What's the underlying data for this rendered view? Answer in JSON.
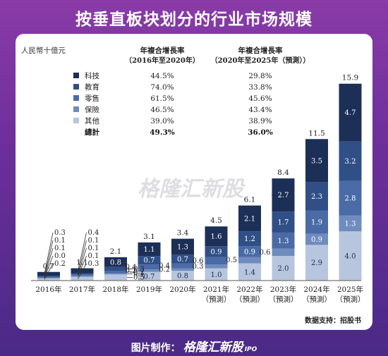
{
  "title": "按垂直板块划分的行业市场规模",
  "source": "数据支持：招股书",
  "footer": {
    "label": "图片制作：",
    "brand": "格隆汇新股",
    "suffix": "IPO"
  },
  "watermark": {
    "brand": "格隆汇新股",
    "suffix": "IPO"
  },
  "colors": {
    "科技": "#1c2f57",
    "教育": "#304f86",
    "零售": "#4a6ba6",
    "保险": "#6f8cbe",
    "其他": "#b7c5de"
  },
  "chart_data": {
    "type": "bar",
    "stacked": true,
    "unit_label": "人民幣十億元",
    "categories": [
      "2016年",
      "2017年",
      "2018年",
      "2019年",
      "2020年",
      "2021年\n（預測）",
      "2022年\n（預測）",
      "2023年\n（預測）",
      "2024年\n（預測）",
      "2025年\n（預測）"
    ],
    "totals": [
      "0.7",
      "1.1",
      "2.1",
      "3.1",
      "3.4",
      "4.5",
      "6.1",
      "8.4",
      "11.5",
      "15.9"
    ],
    "series": [
      {
        "name": "其他",
        "values": [
          0.2,
          0.3,
          0.5,
          0.7,
          0.8,
          1.0,
          1.4,
          2.0,
          2.9,
          4.0
        ],
        "labels": [
          "0.2",
          "0.3",
          "0.5",
          "0.7",
          "0.8",
          "1.0",
          "1.4",
          "2.0",
          "2.9",
          "4.0"
        ]
      },
      {
        "name": "保險",
        "values": [
          0.0,
          0.1,
          0.1,
          0.2,
          0.2,
          0.3,
          0.5,
          0.6,
          0.9,
          1.3
        ],
        "labels": [
          "0.0",
          "0.1",
          "0.1",
          "0.2",
          "0.2",
          "0.3",
          "0.5",
          "0.6",
          "0.9",
          "1.3"
        ]
      },
      {
        "name": "零售",
        "values": [
          0.1,
          0.1,
          0.2,
          0.4,
          0.4,
          0.6,
          0.9,
          1.3,
          1.9,
          2.8
        ],
        "labels": [
          "0.1",
          "0.1",
          "0.2",
          "0.4",
          "0.4",
          "0.6",
          "0.9",
          "1.3",
          "1.9",
          "2.8"
        ]
      },
      {
        "name": "教育",
        "values": [
          0.1,
          0.1,
          0.3,
          0.7,
          0.7,
          0.9,
          1.2,
          1.7,
          2.3,
          3.2
        ],
        "labels": [
          "0.1",
          "0.1",
          "0.3",
          "0.7",
          "0.7",
          "0.9",
          "1.2",
          "1.7",
          "2.3",
          "3.2"
        ]
      },
      {
        "name": "科技",
        "values": [
          0.3,
          0.4,
          0.8,
          1.1,
          1.3,
          1.6,
          2.1,
          2.7,
          3.5,
          4.7
        ],
        "labels": [
          "0.3",
          "0.4",
          "0.8",
          "1.1",
          "1.3",
          "1.6",
          "2.1",
          "2.7",
          "3.5",
          "4.7"
        ]
      }
    ],
    "ylim": [
      0,
      16.5
    ],
    "legend_table": {
      "col1_header": [
        "年複合增長率",
        "（2016年至2020年）"
      ],
      "col2_header": [
        "年複合增長率",
        "（2020年至2025年（預測））"
      ],
      "rows": [
        {
          "name": "科技",
          "cagr1": "44.5%",
          "cagr2": "29.8%"
        },
        {
          "name": "教育",
          "cagr1": "74.0%",
          "cagr2": "33.8%"
        },
        {
          "name": "零售",
          "cagr1": "61.5%",
          "cagr2": "45.6%"
        },
        {
          "name": "保險",
          "cagr1": "46.5%",
          "cagr2": "43.4%"
        },
        {
          "name": "其他",
          "cagr1": "39.0%",
          "cagr2": "38.9%"
        }
      ],
      "total": {
        "name": "總計",
        "cagr1": "49.3%",
        "cagr2": "36.0%"
      }
    }
  }
}
